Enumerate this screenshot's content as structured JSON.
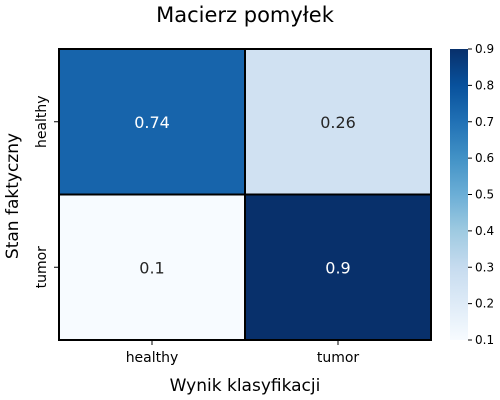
{
  "chart_data": {
    "type": "heatmap",
    "title": "Macierz pomyłek",
    "xlabel": "Wynik klasyfikacji",
    "ylabel": "Stan faktyczny",
    "x_categories": [
      "healthy",
      "tumor"
    ],
    "y_categories": [
      "healthy",
      "tumor"
    ],
    "values": [
      [
        0.74,
        0.26
      ],
      [
        0.1,
        0.9
      ]
    ],
    "value_labels": [
      [
        "0.74",
        "0.26"
      ],
      [
        "0.1",
        "0.9"
      ]
    ],
    "colorscale": "Blues",
    "colorbar": {
      "range": [
        0.1,
        0.9
      ],
      "ticks": [
        0.1,
        0.2,
        0.3,
        0.4,
        0.5,
        0.6,
        0.7,
        0.8,
        0.9
      ],
      "tick_labels": [
        "0.1",
        "0.2",
        "0.3",
        "0.4",
        "0.5",
        "0.6",
        "0.7",
        "0.8",
        "0.9"
      ]
    }
  }
}
